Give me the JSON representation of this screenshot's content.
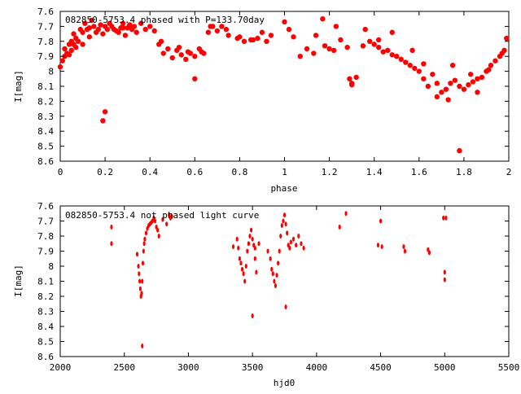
{
  "chart_data": [
    {
      "type": "scatter",
      "title": "082850-5753.4 phased with P=133.70day",
      "xlabel": "phase",
      "ylabel": "I[mag]",
      "xlim": [
        0,
        2
      ],
      "ylim": [
        8.6,
        7.6
      ],
      "y_inverted": true,
      "x_ticks": [
        "0",
        "0.2",
        "0.4",
        "0.6",
        "0.8",
        "1",
        "1.2",
        "1.4",
        "1.6",
        "1.8",
        "2"
      ],
      "y_ticks": [
        "7.6",
        "7.7",
        "7.8",
        "7.9",
        "8",
        "8.1",
        "8.2",
        "8.3",
        "8.4",
        "8.5",
        "8.6"
      ],
      "marker_color": "#ff0000",
      "grid": false,
      "series": [
        {
          "x": [
            0.0,
            0.01,
            0.02,
            0.02,
            0.03,
            0.04,
            0.05,
            0.05,
            0.06,
            0.07,
            0.07,
            0.08,
            0.09,
            0.1,
            0.1,
            0.11,
            0.12,
            0.13,
            0.14,
            0.15,
            0.16,
            0.17,
            0.18,
            0.19,
            0.2,
            0.21,
            0.22,
            0.23,
            0.24,
            0.25,
            0.26,
            0.27,
            0.28,
            0.29,
            0.3,
            0.31,
            0.32,
            0.33,
            0.34,
            0.36,
            0.38,
            0.4,
            0.42,
            0.44,
            0.46,
            0.48,
            0.5,
            0.52,
            0.54,
            0.56,
            0.58,
            0.6,
            0.62,
            0.64,
            0.66,
            0.68,
            0.7,
            0.72,
            0.75,
            0.8,
            0.82,
            0.85,
            0.88,
            0.9,
            0.92,
            0.94,
            0.2,
            0.19,
            0.6,
            1.0,
            1.02,
            1.04,
            1.07,
            1.1,
            1.13,
            1.17,
            1.18,
            1.2,
            1.22,
            1.25,
            1.28,
            1.3,
            1.32,
            1.35,
            1.38,
            1.4,
            1.42,
            1.44,
            1.46,
            1.48,
            1.5,
            1.52,
            1.54,
            1.56,
            1.58,
            1.6,
            1.62,
            1.64,
            1.66,
            1.68,
            1.7,
            1.72,
            1.74,
            1.76,
            1.78,
            1.8,
            1.82,
            1.84,
            1.86,
            1.88,
            1.9,
            1.92,
            1.94,
            1.96,
            1.98,
            1.99,
            1.29,
            1.3,
            1.78,
            1.62,
            1.75,
            1.73,
            1.68,
            1.86,
            1.48,
            1.36,
            1.42,
            1.57,
            1.83,
            1.91,
            1.97,
            1.23,
            1.14,
            0.04,
            0.06,
            0.13,
            0.28,
            0.31,
            0.45,
            0.53,
            0.57,
            0.63,
            0.67,
            0.74,
            0.79,
            0.86
          ],
          "y": [
            7.97,
            7.93,
            7.9,
            7.85,
            7.88,
            7.82,
            7.8,
            7.86,
            7.75,
            7.84,
            7.78,
            7.8,
            7.72,
            7.74,
            7.82,
            7.68,
            7.72,
            7.71,
            7.66,
            7.7,
            7.74,
            7.72,
            7.69,
            7.75,
            7.7,
            7.72,
            7.68,
            7.7,
            7.72,
            7.73,
            7.74,
            7.71,
            7.68,
            7.76,
            7.71,
            7.69,
            7.72,
            7.7,
            7.74,
            7.68,
            7.72,
            7.7,
            7.73,
            7.82,
            7.88,
            7.85,
            7.91,
            7.86,
            7.89,
            7.92,
            7.88,
            7.9,
            7.85,
            7.88,
            7.74,
            7.7,
            7.73,
            7.7,
            7.76,
            7.77,
            7.8,
            7.79,
            7.78,
            7.74,
            7.8,
            7.76,
            8.27,
            8.33,
            8.05,
            7.67,
            7.72,
            7.77,
            7.9,
            7.85,
            7.88,
            7.65,
            7.83,
            7.85,
            7.86,
            7.79,
            7.84,
            8.08,
            8.04,
            7.83,
            7.8,
            7.82,
            7.84,
            7.87,
            7.86,
            7.89,
            7.9,
            7.92,
            7.94,
            7.96,
            7.98,
            8.0,
            8.05,
            8.1,
            8.02,
            8.08,
            8.14,
            8.12,
            8.08,
            8.06,
            8.1,
            8.12,
            8.09,
            8.07,
            8.05,
            8.04,
            8.0,
            7.96,
            7.93,
            7.9,
            7.86,
            7.78,
            8.05,
            8.09,
            8.53,
            7.95,
            7.96,
            8.19,
            8.17,
            8.14,
            7.74,
            7.72,
            7.79,
            7.86,
            8.02,
            7.99,
            7.88,
            7.7,
            7.76,
            7.89,
            7.82,
            7.77,
            7.71,
            7.69,
            7.8,
            7.84,
            7.87,
            7.87,
            7.7,
            7.72,
            7.78,
            7.79
          ]
        }
      ]
    },
    {
      "type": "scatter",
      "title": "082850-5753.4 not phased light curve",
      "xlabel": "hjd0",
      "ylabel": "I[mag]",
      "xlim": [
        2000,
        5500
      ],
      "ylim": [
        8.6,
        7.6
      ],
      "y_inverted": true,
      "x_ticks": [
        "2000",
        "2500",
        "3000",
        "3500",
        "4000",
        "4500",
        "5000",
        "5500"
      ],
      "y_ticks": [
        "7.6",
        "7.7",
        "7.8",
        "7.9",
        "8",
        "8.1",
        "8.2",
        "8.3",
        "8.4",
        "8.5",
        "8.6"
      ],
      "marker_color": "#ff0000",
      "grid": false,
      "series": [
        {
          "x": [
            2400,
            2400,
            2600,
            2610,
            2615,
            2620,
            2625,
            2630,
            2635,
            2640,
            2645,
            2650,
            2655,
            2660,
            2670,
            2680,
            2690,
            2700,
            2710,
            2720,
            2730,
            2740,
            2750,
            2760,
            2770,
            2640,
            2800,
            2830,
            2850,
            2860,
            2870,
            3350,
            3380,
            3390,
            3400,
            3410,
            3420,
            3430,
            3440,
            3450,
            3460,
            3470,
            3480,
            3490,
            3500,
            3510,
            3520,
            3530,
            3550,
            3500,
            3520,
            3620,
            3640,
            3650,
            3660,
            3670,
            3680,
            3690,
            3700,
            3710,
            3720,
            3730,
            3740,
            3750,
            3760,
            3770,
            3780,
            3790,
            3800,
            3820,
            3840,
            3860,
            3880,
            3900,
            3760,
            4180,
            4230,
            4480,
            4500,
            4510,
            4680,
            4690,
            4870,
            4880,
            4990,
            5000,
            5000,
            5010
          ],
          "y": [
            7.74,
            7.85,
            7.92,
            8.0,
            8.05,
            8.1,
            8.15,
            8.2,
            8.18,
            8.1,
            7.98,
            7.9,
            7.85,
            7.82,
            7.78,
            7.75,
            7.73,
            7.72,
            7.71,
            7.7,
            7.68,
            7.7,
            7.74,
            7.76,
            7.8,
            8.53,
            7.69,
            7.72,
            7.66,
            7.68,
            7.67,
            7.87,
            7.82,
            7.88,
            7.95,
            7.98,
            8.02,
            8.05,
            8.1,
            8.0,
            7.9,
            7.85,
            7.8,
            7.76,
            7.82,
            7.86,
            7.88,
            8.04,
            7.85,
            8.33,
            7.95,
            7.9,
            7.95,
            8.02,
            8.05,
            8.1,
            8.13,
            8.06,
            7.98,
            7.9,
            7.8,
            7.73,
            7.7,
            7.66,
            7.72,
            7.78,
            7.86,
            7.88,
            7.84,
            7.82,
            7.86,
            7.8,
            7.85,
            7.88,
            8.27,
            7.74,
            7.65,
            7.86,
            7.7,
            7.87,
            7.87,
            7.9,
            7.89,
            7.91,
            7.68,
            8.04,
            8.09,
            7.68
          ]
        }
      ]
    }
  ]
}
